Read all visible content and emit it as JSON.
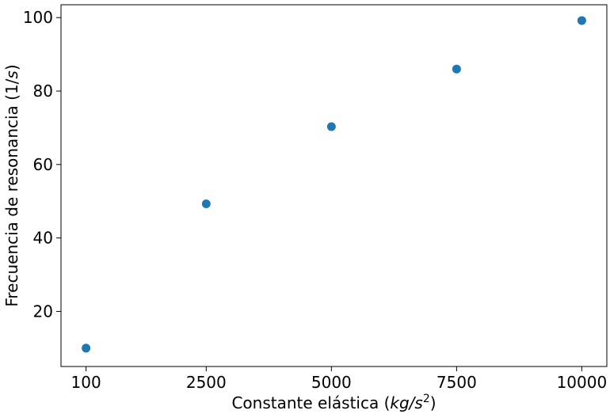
{
  "chart_data": {
    "type": "scatter",
    "title": "",
    "xlabel": {
      "prefix": "Constante elástica (",
      "unit_main": "kg/s",
      "unit_exp": "2",
      "suffix": ")"
    },
    "ylabel": {
      "prefix": "Frecuencia de resonancia (1/",
      "unit_main": "s",
      "suffix": ")"
    },
    "xlim": [
      -400,
      10500
    ],
    "ylim": [
      5,
      103.5
    ],
    "x_ticks": [
      100,
      2500,
      5000,
      7500,
      10000
    ],
    "x_tick_labels": [
      "100",
      "2500",
      "5000",
      "7500",
      "10000"
    ],
    "y_ticks": [
      20,
      40,
      60,
      80,
      100
    ],
    "y_tick_labels": [
      "20",
      "40",
      "60",
      "80",
      "100"
    ],
    "grid": false,
    "series": [
      {
        "x": [
          100,
          2500,
          5000,
          7500,
          10000
        ],
        "y": [
          10,
          49.3,
          70.3,
          86,
          99.2
        ],
        "color": "#1f77b4"
      }
    ]
  }
}
